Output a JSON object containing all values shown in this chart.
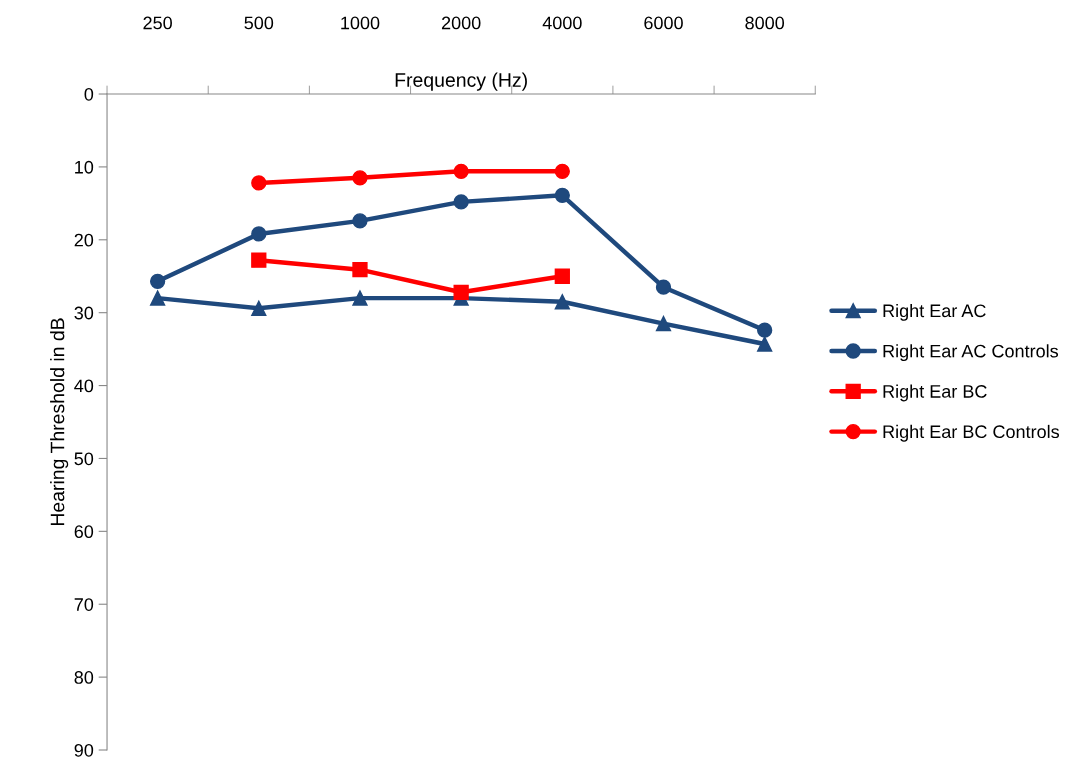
{
  "chart_data": {
    "type": "line",
    "xlabel": "Frequency (Hz)",
    "ylabel": "Hearing Threshold in dB",
    "categories": [
      "250",
      "500",
      "1000",
      "2000",
      "4000",
      "6000",
      "8000"
    ],
    "ylim": [
      90,
      0
    ],
    "yticks": [
      0,
      10,
      20,
      30,
      40,
      50,
      60,
      70,
      80,
      90
    ],
    "grid": false,
    "legend": "right",
    "series": [
      {
        "name": "Right Ear AC",
        "color": "#1f497d",
        "marker": "triangle",
        "values": [
          28.0,
          29.4,
          28.0,
          28.0,
          28.5,
          31.5,
          34.3
        ]
      },
      {
        "name": "Right Ear AC Controls",
        "color": "#1f497d",
        "marker": "circle",
        "values": [
          25.7,
          19.2,
          17.4,
          14.8,
          13.9,
          26.5,
          32.4
        ]
      },
      {
        "name": "Right Ear BC",
        "color": "#ff0000",
        "marker": "square",
        "values": [
          null,
          22.8,
          24.1,
          27.2,
          25.0,
          null,
          null
        ]
      },
      {
        "name": "Right Ear BC Controls",
        "color": "#ff0000",
        "marker": "circle",
        "values": [
          null,
          12.2,
          11.5,
          10.6,
          10.6,
          null,
          null
        ]
      }
    ]
  }
}
